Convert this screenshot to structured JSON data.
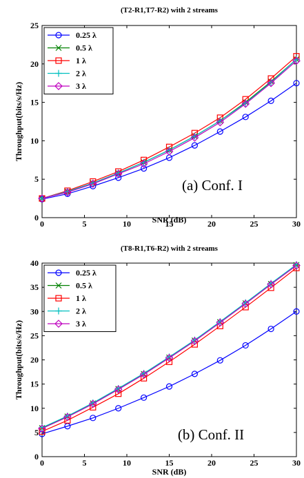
{
  "chart_data": [
    {
      "type": "line",
      "title": "(T2-R1,T7-R2) with 2 streams",
      "xlabel": "SNR (dB)",
      "ylabel": "Throughput(bits/s/Hz)",
      "xlim": [
        0,
        30
      ],
      "ylim": [
        0,
        25
      ],
      "xticks": [
        0,
        5,
        10,
        15,
        20,
        25,
        30
      ],
      "yticks": [
        0,
        5,
        10,
        15,
        20,
        25
      ],
      "grid": false,
      "legend": "top-left",
      "annotation": "(a) Conf. I",
      "x": [
        0,
        3,
        6,
        9,
        12,
        15,
        18,
        21,
        24,
        27,
        30
      ],
      "series": [
        {
          "name": "0.25 λ",
          "color": "#0000ff",
          "marker": "circle",
          "values": [
            2.4,
            3.1,
            4.1,
            5.2,
            6.4,
            7.8,
            9.4,
            11.2,
            13.1,
            15.2,
            17.5
          ]
        },
        {
          "name": "0.5 λ",
          "color": "#008000",
          "marker": "x",
          "values": [
            2.5,
            3.4,
            4.5,
            5.8,
            7.2,
            8.8,
            10.6,
            12.6,
            15.0,
            17.7,
            20.6
          ]
        },
        {
          "name": "1 λ",
          "color": "#ff0000",
          "marker": "square",
          "values": [
            2.5,
            3.5,
            4.7,
            6.0,
            7.5,
            9.2,
            11.0,
            13.0,
            15.4,
            18.1,
            21.0
          ]
        },
        {
          "name": "2 λ",
          "color": "#00bfbf",
          "marker": "plus",
          "values": [
            2.5,
            3.4,
            4.5,
            5.8,
            7.2,
            8.8,
            10.6,
            12.6,
            14.9,
            17.6,
            20.6
          ]
        },
        {
          "name": "3 λ",
          "color": "#bf00bf",
          "marker": "diamond",
          "values": [
            2.5,
            3.3,
            4.4,
            5.7,
            7.0,
            8.6,
            10.4,
            12.4,
            14.8,
            17.5,
            20.4
          ]
        }
      ]
    },
    {
      "type": "line",
      "title": "(T8-R1,T6-R2) with 2 streams",
      "xlabel": "SNR (dB)",
      "ylabel": "Throughput(bits/s/Hz)",
      "xlim": [
        0,
        30
      ],
      "ylim": [
        0,
        40
      ],
      "xticks": [
        0,
        5,
        10,
        15,
        20,
        25,
        30
      ],
      "yticks": [
        0,
        5,
        10,
        15,
        20,
        25,
        30,
        35,
        40
      ],
      "grid": false,
      "legend": "top-left",
      "annotation": "(b) Conf. II",
      "x": [
        0,
        3,
        6,
        9,
        12,
        15,
        18,
        21,
        24,
        27,
        30
      ],
      "series": [
        {
          "name": "0.25 λ",
          "color": "#0000ff",
          "marker": "circle",
          "values": [
            4.7,
            6.3,
            8.0,
            10.0,
            12.2,
            14.5,
            17.1,
            19.9,
            23.0,
            26.4,
            30.0
          ]
        },
        {
          "name": "0.5 λ",
          "color": "#008000",
          "marker": "x",
          "values": [
            5.9,
            8.3,
            11.0,
            14.0,
            17.1,
            20.5,
            24.0,
            27.8,
            31.7,
            35.7,
            39.6
          ]
        },
        {
          "name": "1 λ",
          "color": "#ff0000",
          "marker": "square",
          "values": [
            5.2,
            7.5,
            10.2,
            13.0,
            16.2,
            19.6,
            23.2,
            27.0,
            30.9,
            34.9,
            39.0
          ]
        },
        {
          "name": "2 λ",
          "color": "#00bfbf",
          "marker": "plus",
          "values": [
            6.0,
            8.4,
            11.1,
            14.1,
            17.2,
            20.6,
            24.1,
            27.9,
            31.8,
            35.8,
            39.7
          ]
        },
        {
          "name": "3 λ",
          "color": "#bf00bf",
          "marker": "diamond",
          "values": [
            5.8,
            8.2,
            10.9,
            13.9,
            17.0,
            20.4,
            23.9,
            27.7,
            31.6,
            35.6,
            39.5
          ]
        }
      ]
    }
  ]
}
